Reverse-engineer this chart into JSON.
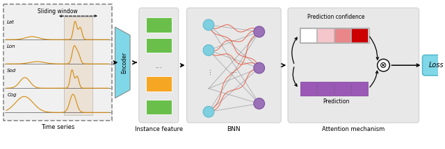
{
  "fig_width": 6.4,
  "fig_height": 2.15,
  "dpi": 100,
  "bg_color": "#ffffff",
  "panel_bg": "#e8e8e8",
  "time_series_labels": [
    "Lat",
    "Lon",
    "Sod",
    "Cog"
  ],
  "sliding_window_text": "Sliding window",
  "time_series_text": "Time series",
  "instance_feature_text": "Instance feature",
  "bnn_text": "BNN",
  "attention_text": "Attention mechanism",
  "prediction_confidence_text": "Prediction confidence",
  "prediction_text": "Prediction",
  "loss_text": "Loss",
  "encoder_color": "#7fd7e8",
  "instance_box_green": "#6abf4b",
  "instance_box_orange": "#f5a623",
  "bnn_node_color": "#7ecfe0",
  "bnn_output_node_color": "#9b72b8",
  "bnn_line_color_red": "#e8543a",
  "bnn_line_color_gray": "#888888",
  "prediction_conf_colors": [
    "#ffffff",
    "#f5c6cb",
    "#e8868a",
    "#cc0000"
  ],
  "prediction_colors": [
    "#9b59b6",
    "#9b59b6",
    "#9b59b6",
    "#9b59b6"
  ],
  "loss_box_color": "#7fd7e8",
  "ts_line_color": "#d4890a",
  "window_shade_color": "#e8d8c4",
  "window_border_color": "#aaaaaa",
  "panel_ec": "#cccccc"
}
